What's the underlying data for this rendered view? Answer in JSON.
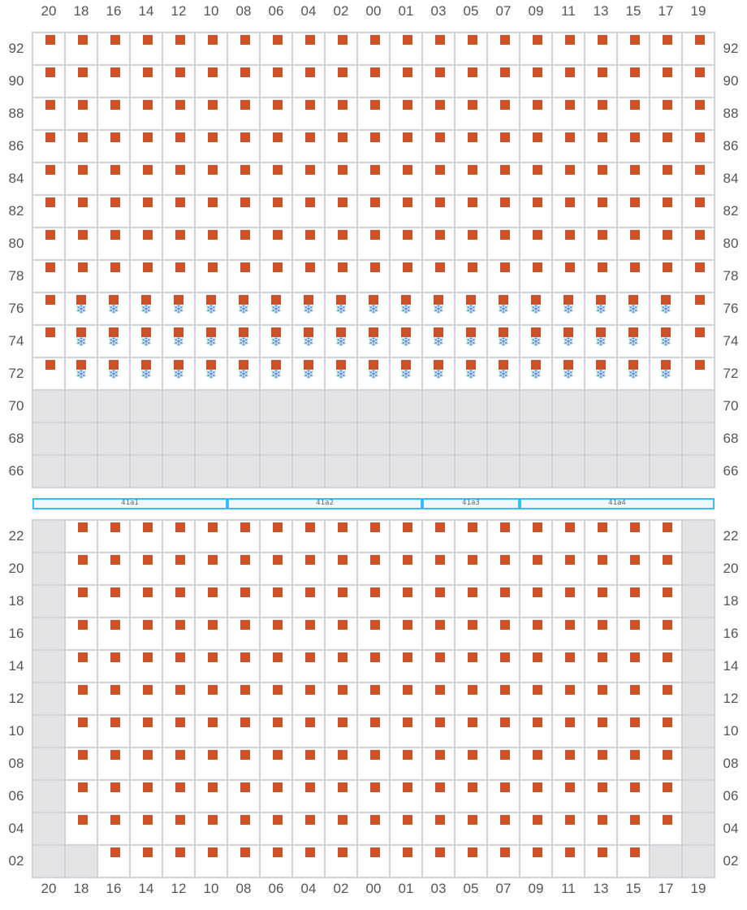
{
  "columns": [
    "20",
    "18",
    "16",
    "14",
    "12",
    "10",
    "08",
    "06",
    "04",
    "02",
    "00",
    "01",
    "03",
    "05",
    "07",
    "09",
    "11",
    "13",
    "15",
    "17",
    "19"
  ],
  "legend": {
    "S": "occupied",
    "F": "occupied-frozen",
    "X": "unavailable"
  },
  "colors": {
    "occupied": "#cd522a",
    "frozen": "#4a90d9",
    "unavailable": "#e4e4e7",
    "grid": "#d4d4d8",
    "section": "#38bdf8"
  },
  "top_grid": {
    "rows": [
      "92",
      "90",
      "88",
      "86",
      "84",
      "82",
      "80",
      "78",
      "76",
      "74",
      "72",
      "70",
      "68",
      "66"
    ],
    "cells": [
      "SSSSSSSSSSSSSSSSSSSSS",
      "SSSSSSSSSSSSSSSSSSSSS",
      "SSSSSSSSSSSSSSSSSSSSS",
      "SSSSSSSSSSSSSSSSSSSSS",
      "SSSSSSSSSSSSSSSSSSSSS",
      "SSSSSSSSSSSSSSSSSSSSS",
      "SSSSSSSSSSSSSSSSSSSSS",
      "SSSSSSSSSSSSSSSSSSSSS",
      "SFFFFFFFFFFFFFFFFFFFS",
      "SFFFFFFFFFFFFFFFFFFFS",
      "SFFFFFFFFFFFFFFFFFFFS",
      "XXXXXXXXXXXXXXXXXXXXX",
      "XXXXXXXXXXXXXXXXXXXXX",
      "XXXXXXXXXXXXXXXXXXXXX"
    ]
  },
  "sections": [
    {
      "label": "41a1",
      "from": "20",
      "to": "10"
    },
    {
      "label": "41a2",
      "from": "08",
      "to": "01"
    },
    {
      "label": "41a3",
      "from": "03",
      "to": "07"
    },
    {
      "label": "41a4",
      "from": "09",
      "to": "19"
    }
  ],
  "bottom_grid": {
    "rows": [
      "22",
      "20",
      "18",
      "16",
      "14",
      "12",
      "10",
      "08",
      "06",
      "04",
      "02"
    ],
    "cells": [
      "XSSSSSSSSSSSSSSSSSSSX",
      "XSSSSSSSSSSSSSSSSSSSX",
      "XSSSSSSSSSSSSSSSSSSSX",
      "XSSSSSSSSSSSSSSSSSSSX",
      "XSSSSSSSSSSSSSSSSSSSX",
      "XSSSSSSSSSSSSSSSSSSSX",
      "XSSSSSSSSSSSSSSSSSSSX",
      "XSSSSSSSSSSSSSSSSSSSX",
      "XSSSSSSSSSSSSSSSSSSSX",
      "XSSSSSSSSSSSSSSSSSSSX",
      "XXSSSSSSSSSSSSSSSSSXX"
    ]
  },
  "icons": {
    "occupied": "square",
    "frozen": "snowflake-icon"
  }
}
